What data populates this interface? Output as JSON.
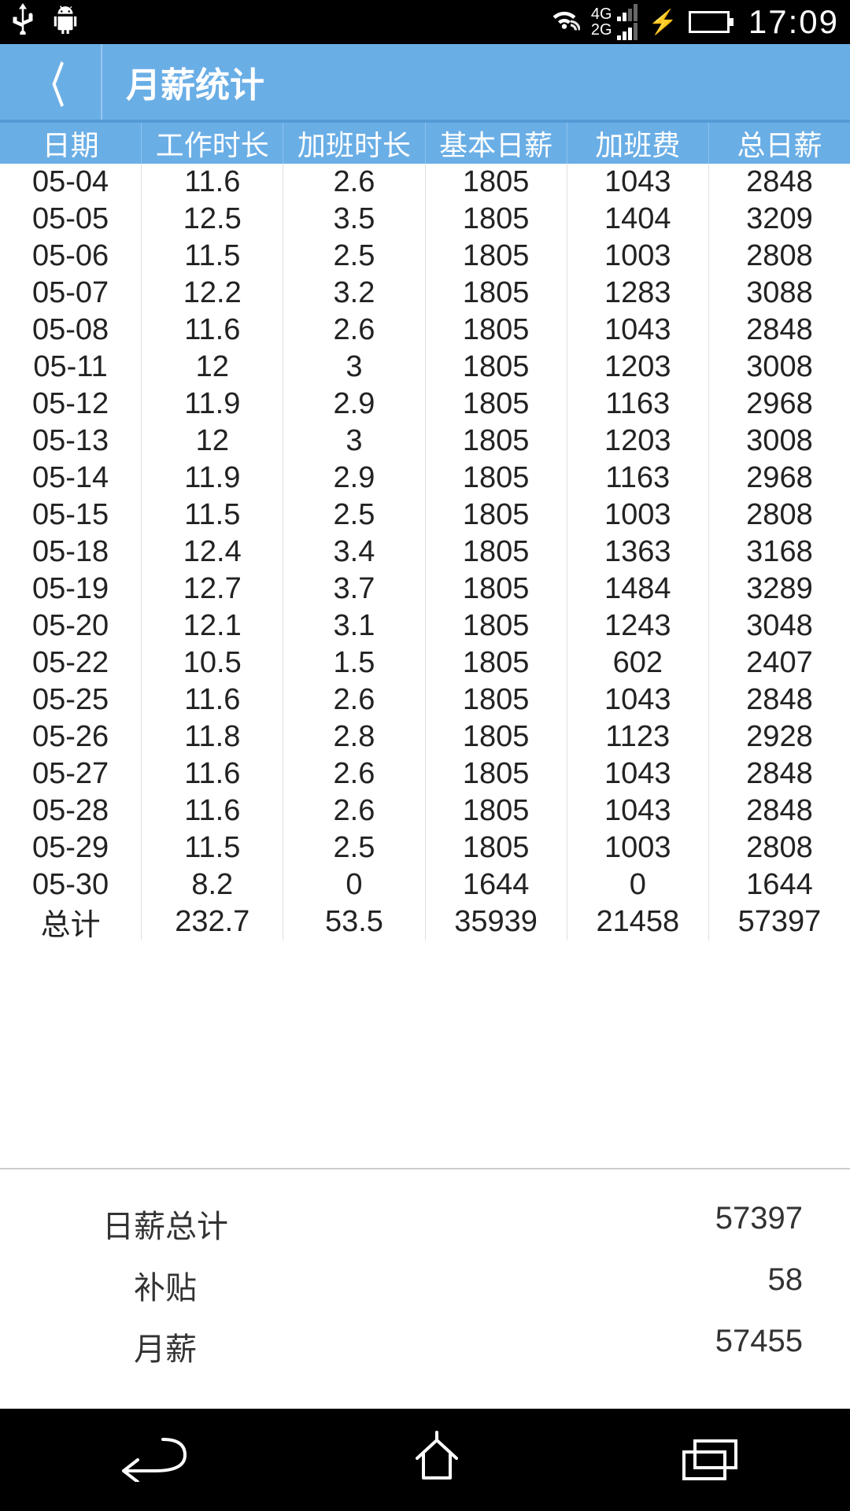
{
  "status": {
    "time": "17:09",
    "net1": "4G",
    "net2": "2G"
  },
  "titlebar": {
    "title": "月薪统计"
  },
  "table": {
    "headers": [
      "日期",
      "工作时长",
      "加班时长",
      "基本日薪",
      "加班费",
      "总日薪"
    ],
    "rows": [
      [
        "05-04",
        "11.6",
        "2.6",
        "1805",
        "1043",
        "2848"
      ],
      [
        "05-05",
        "12.5",
        "3.5",
        "1805",
        "1404",
        "3209"
      ],
      [
        "05-06",
        "11.5",
        "2.5",
        "1805",
        "1003",
        "2808"
      ],
      [
        "05-07",
        "12.2",
        "3.2",
        "1805",
        "1283",
        "3088"
      ],
      [
        "05-08",
        "11.6",
        "2.6",
        "1805",
        "1043",
        "2848"
      ],
      [
        "05-11",
        "12",
        "3",
        "1805",
        "1203",
        "3008"
      ],
      [
        "05-12",
        "11.9",
        "2.9",
        "1805",
        "1163",
        "2968"
      ],
      [
        "05-13",
        "12",
        "3",
        "1805",
        "1203",
        "3008"
      ],
      [
        "05-14",
        "11.9",
        "2.9",
        "1805",
        "1163",
        "2968"
      ],
      [
        "05-15",
        "11.5",
        "2.5",
        "1805",
        "1003",
        "2808"
      ],
      [
        "05-18",
        "12.4",
        "3.4",
        "1805",
        "1363",
        "3168"
      ],
      [
        "05-19",
        "12.7",
        "3.7",
        "1805",
        "1484",
        "3289"
      ],
      [
        "05-20",
        "12.1",
        "3.1",
        "1805",
        "1243",
        "3048"
      ],
      [
        "05-22",
        "10.5",
        "1.5",
        "1805",
        "602",
        "2407"
      ],
      [
        "05-25",
        "11.6",
        "2.6",
        "1805",
        "1043",
        "2848"
      ],
      [
        "05-26",
        "11.8",
        "2.8",
        "1805",
        "1123",
        "2928"
      ],
      [
        "05-27",
        "11.6",
        "2.6",
        "1805",
        "1043",
        "2848"
      ],
      [
        "05-28",
        "11.6",
        "2.6",
        "1805",
        "1043",
        "2848"
      ],
      [
        "05-29",
        "11.5",
        "2.5",
        "1805",
        "1003",
        "2808"
      ],
      [
        "05-30",
        "8.2",
        "0",
        "1644",
        "0",
        "1644"
      ],
      [
        "总计",
        "232.7",
        "53.5",
        "35939",
        "21458",
        "57397"
      ]
    ]
  },
  "summary": {
    "rows": [
      {
        "label": "日薪总计",
        "value": "57397"
      },
      {
        "label": "补贴",
        "value": "58"
      },
      {
        "label": "月薪",
        "value": "57455"
      }
    ]
  }
}
